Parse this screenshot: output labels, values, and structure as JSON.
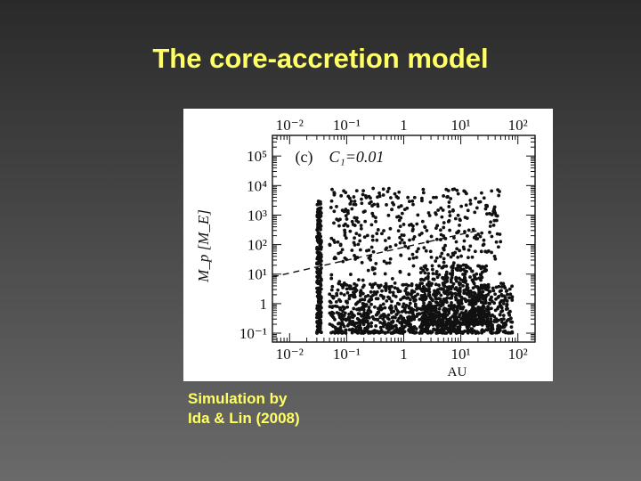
{
  "slide": {
    "title": "The core-accretion model",
    "caption_line1": "Simulation by",
    "caption_line2": "Ida & Lin (2008)"
  },
  "colors": {
    "background": "#3a3a3a",
    "title": "#ffff66",
    "caption": "#ffff66",
    "figure_bg": "#ffffff",
    "points": "#111111"
  },
  "chart_data": {
    "type": "scatter",
    "panel_label": "(c)",
    "annotation": "C₁=0.01",
    "xlabel": "AU",
    "ylabel": "M_p [M_E]",
    "xscale": "log",
    "yscale": "log",
    "xlim": [
      0.005,
      200
    ],
    "ylim": [
      0.05,
      500000
    ],
    "x_ticks": [
      0.01,
      0.1,
      1,
      10,
      100
    ],
    "x_tick_labels": [
      "10⁻²",
      "10⁻¹",
      "1",
      "10¹",
      "10²"
    ],
    "y_ticks": [
      0.1,
      1,
      10,
      100,
      1000,
      10000,
      100000
    ],
    "y_tick_labels": [
      "10⁻¹",
      "1",
      "10¹",
      "10²",
      "10³",
      "10⁴",
      "10⁵"
    ],
    "grid": false,
    "reference_line": {
      "style": "dashed",
      "x": [
        0.005,
        20
      ],
      "y": [
        8,
        300
      ]
    },
    "populations": [
      {
        "name": "inner pile-up column",
        "x_range": [
          0.03,
          0.036
        ],
        "y_range": [
          0.1,
          3000
        ],
        "approx_count": 260
      },
      {
        "name": "low-mass embryos",
        "x_range": [
          0.05,
          80
        ],
        "y_range": [
          0.1,
          5
        ],
        "approx_count": 1100
      },
      {
        "name": "outer dense clump",
        "x_range": [
          2,
          30
        ],
        "y_range": [
          0.2,
          20
        ],
        "approx_count": 500
      },
      {
        "name": "gas giants",
        "x_range": [
          0.05,
          50
        ],
        "y_range": [
          30,
          8000
        ],
        "approx_count": 350
      },
      {
        "name": "intermediate desert",
        "x_range": [
          0.05,
          50
        ],
        "y_range": [
          5,
          30
        ],
        "approx_count": 50
      }
    ]
  }
}
